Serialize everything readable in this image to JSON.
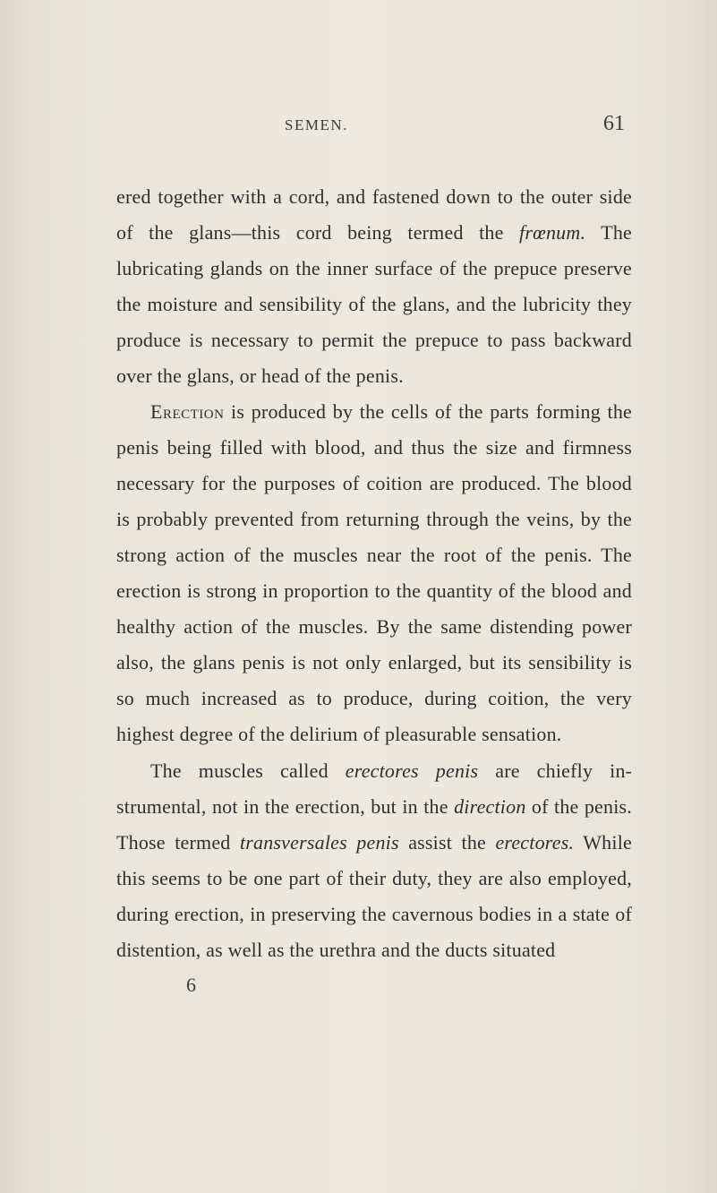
{
  "page": {
    "running_head": "SEMEN.",
    "number": "61",
    "signature": "6",
    "background_color": "#e8e5d8",
    "text_color": "#2e2e2c",
    "body_fontsize": 22,
    "line_height": 1.82,
    "header_fontsize": 17,
    "pagenum_fontsize": 24
  },
  "paragraphs": [
    {
      "runs": [
        {
          "text": "ered together with a cord, and fastened down to the outer side of the glans—this cord being termed the ",
          "style": "normal"
        },
        {
          "text": "frœnum.",
          "style": "italic"
        },
        {
          "text": " The lubricating glands on the inner sur­face of the prepuce preserve the moisture and sensi­bility of the glans, and the lubricity they produce is necessary to permit the prepuce to pass backward over the glans, or head of the penis.",
          "style": "normal"
        }
      ]
    },
    {
      "runs": [
        {
          "text": "Erection",
          "style": "smallcaps"
        },
        {
          "text": " is produced by the cells of the parts forming the penis being filled with blood, and thus the size and firmness necessary for the purposes of coition are produced. The blood is probably pre­vented from returning through the veins, by the strong action of the muscles near the root of the penis. The erection is strong in proportion to the quantity of the blood and healthy action of the mus­cles. By the same distending power also, the glans penis is not only enlarged, but its sensibility is so much increased as to produce, during coition, the very highest degree of the delirium of pleasurable sensation.",
          "style": "normal"
        }
      ]
    },
    {
      "runs": [
        {
          "text": "The muscles called ",
          "style": "normal"
        },
        {
          "text": "erectores penis",
          "style": "italic"
        },
        {
          "text": " are chiefly in­strumental, not in the erection, but in the ",
          "style": "normal"
        },
        {
          "text": "direction",
          "style": "italic"
        },
        {
          "text": " of the penis. Those termed ",
          "style": "normal"
        },
        {
          "text": "transversales penis",
          "style": "italic"
        },
        {
          "text": " assist the ",
          "style": "normal"
        },
        {
          "text": "erectores.",
          "style": "italic"
        },
        {
          "text": " While this seems to be one part of their duty, they are also employed, during erection, in preserving the cavernous bodies in a state of dis­tention, as well as the urethra and the ducts situated",
          "style": "normal"
        }
      ]
    }
  ]
}
